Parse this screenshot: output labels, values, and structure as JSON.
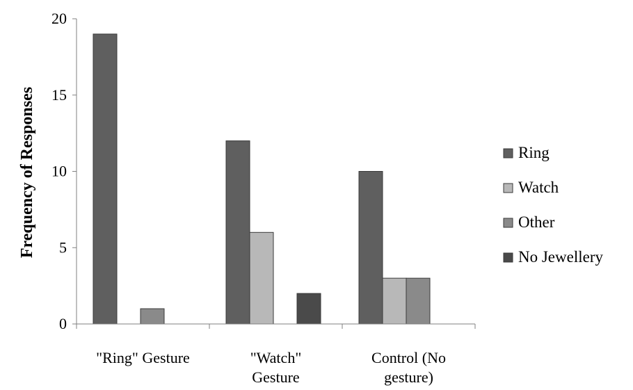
{
  "chart_data": {
    "type": "bar",
    "title": "",
    "xlabel": "",
    "ylabel": "Frequency of Responses",
    "ylim": [
      0,
      20
    ],
    "yticks": [
      0,
      5,
      10,
      15,
      20
    ],
    "grid": false,
    "legend_position": "right",
    "categories": [
      [
        "\"Ring\" Gesture"
      ],
      [
        "\"Watch\"",
        "Gesture"
      ],
      [
        "Control (No",
        "gesture)"
      ]
    ],
    "series": [
      {
        "name": "Ring",
        "color": "#5f5f5f",
        "values": [
          19,
          12,
          10
        ]
      },
      {
        "name": "Watch",
        "color": "#b8b8b8",
        "values": [
          0,
          6,
          3
        ]
      },
      {
        "name": "Other",
        "color": "#8a8a8a",
        "values": [
          1,
          0,
          3
        ]
      },
      {
        "name": "No Jewellery",
        "color": "#4a4a4a",
        "values": [
          0,
          2,
          0
        ]
      }
    ]
  }
}
